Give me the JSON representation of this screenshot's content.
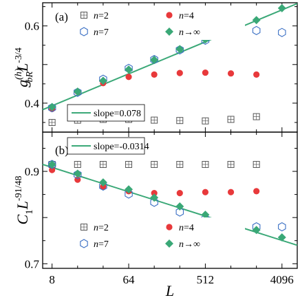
{
  "chart_data": [
    {
      "type": "scatter",
      "panel_label": "(a)",
      "ylabel": "g_bR^(h) L^-3/4",
      "ylabel_parts": {
        "base": "g",
        "sup": "(h)",
        "sub": "bR",
        "mid": "L",
        "exp": "-3/4"
      },
      "xlabel": "",
      "x_scale": "log2",
      "xlim": [
        6.2,
        6200
      ],
      "ylim": [
        0.325,
        0.66
      ],
      "x_ticks": [
        8,
        64,
        512,
        4096
      ],
      "y_ticks": [
        0.4,
        0.5,
        0.6
      ],
      "y_tick_labels": [
        "0.4",
        "",
        "0.6"
      ],
      "x": [
        8,
        16,
        32,
        64,
        128,
        256,
        512,
        1024,
        2048,
        4096
      ],
      "series": [
        {
          "name": "n=2",
          "marker": "square",
          "color": "#555555",
          "values": [
            0.35,
            0.356,
            0.358,
            0.358,
            0.356,
            0.355,
            0.354,
            0.358,
            0.365,
            null
          ]
        },
        {
          "name": "n=4",
          "marker": "circle",
          "color": "#e8393b",
          "values": [
            0.385,
            0.43,
            0.452,
            0.468,
            0.474,
            0.478,
            0.479,
            0.477,
            0.474,
            null
          ]
        },
        {
          "name": "n=7",
          "marker": "hexagon",
          "color": "#3a6fc4",
          "values": [
            0.388,
            0.428,
            0.462,
            0.49,
            0.513,
            0.538,
            0.563,
            0.578,
            0.588,
            0.583
          ]
        },
        {
          "name": "n→∞",
          "marker": "diamond",
          "color": "#3aa877",
          "values": [
            0.39,
            0.43,
            0.458,
            0.487,
            0.512,
            0.54,
            0.565,
            0.592,
            0.615,
            0.646
          ]
        }
      ],
      "fit_line": {
        "label": "slope=0.078",
        "color": "#3aa877",
        "x": [
          6.2,
          6200
        ],
        "y": [
          0.383,
          0.658
        ]
      },
      "legend_position": "top-right",
      "fit_legend_position": "bottom-left"
    },
    {
      "type": "scatter",
      "panel_label": "(b)",
      "ylabel": "C_1 L^-91/48",
      "ylabel_parts": {
        "base": "C",
        "sub": "1",
        "mid": "L",
        "exp": "-91/48"
      },
      "xlabel": "L",
      "x_scale": "log2",
      "xlim": [
        6.2,
        6200
      ],
      "ylim": [
        0.69,
        0.985
      ],
      "x_ticks": [
        8,
        64,
        512,
        4096
      ],
      "x_tick_labels": [
        "8",
        "64",
        "512",
        "4096"
      ],
      "y_ticks": [
        0.7,
        0.8,
        0.9
      ],
      "y_tick_labels": [
        "0.7",
        "",
        "0.9"
      ],
      "x": [
        8,
        16,
        32,
        64,
        128,
        256,
        512,
        1024,
        2048,
        4096
      ],
      "series": [
        {
          "name": "n=2",
          "marker": "square",
          "color": "#555555",
          "values": [
            0.915,
            0.915,
            0.915,
            0.915,
            0.915,
            0.915,
            0.915,
            0.915,
            0.915,
            null
          ]
        },
        {
          "name": "n=4",
          "marker": "circle",
          "color": "#e8393b",
          "values": [
            0.903,
            0.882,
            0.867,
            0.857,
            0.853,
            0.853,
            0.855,
            0.855,
            0.857,
            null
          ]
        },
        {
          "name": "n=7",
          "marker": "hexagon",
          "color": "#3a6fc4",
          "values": [
            0.915,
            0.893,
            0.868,
            0.851,
            0.833,
            0.812,
            0.797,
            0.785,
            0.78,
            0.78
          ]
        },
        {
          "name": "n→∞",
          "marker": "diamond",
          "color": "#3aa877",
          "values": [
            0.915,
            0.895,
            0.876,
            0.861,
            0.843,
            0.824,
            0.806,
            0.789,
            0.773,
            0.757
          ]
        }
      ],
      "fit_line": {
        "label": "slope=-0.0314",
        "color": "#3aa877",
        "x": [
          6.2,
          6200
        ],
        "y": [
          0.915,
          0.74
        ]
      },
      "legend_position": "bottom-left",
      "fit_legend_position": "top-left"
    }
  ]
}
